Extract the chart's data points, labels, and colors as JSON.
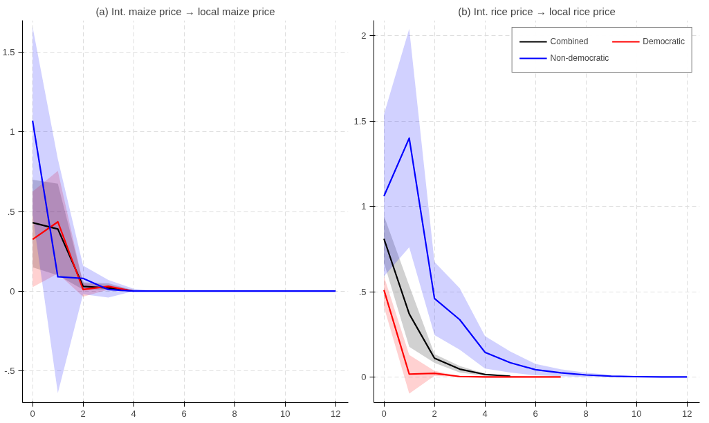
{
  "chart_data": [
    {
      "type": "line",
      "title": "(a) Int. maize price → local maize price",
      "x": [
        0,
        1,
        2,
        3,
        4,
        5,
        6,
        7,
        8,
        9,
        10,
        11,
        12
      ],
      "xlim": [
        -0.4,
        12.5
      ],
      "xticks": [
        0,
        2,
        4,
        6,
        8,
        10,
        12
      ],
      "ylim": [
        -0.7,
        1.7
      ],
      "yticks": [
        {
          "value": -0.5,
          "label": "-.5"
        },
        0,
        {
          "value": 0.5,
          "label": ".5"
        },
        1,
        {
          "value": 1.5,
          "label": "1.5"
        }
      ],
      "grid": true,
      "legend": false,
      "series": [
        {
          "color": "#000000",
          "values": [
            0.43,
            0.39,
            0.03,
            0.02,
            0,
            null,
            null,
            null,
            null,
            null,
            null,
            null,
            null
          ],
          "upper": [
            0.7,
            0.675,
            0.055,
            0.05,
            0.005,
            0,
            0,
            0,
            0,
            0,
            0,
            0,
            0
          ],
          "lower": [
            0.15,
            0.1,
            0.01,
            0.01,
            0,
            0,
            0,
            0,
            0,
            0,
            0,
            0,
            0
          ]
        },
        {
          "color": "#ff0000",
          "values": [
            0.325,
            0.435,
            0.01,
            0.03,
            0,
            null,
            null,
            null,
            null,
            null,
            null,
            null,
            null
          ],
          "upper": [
            0.625,
            0.755,
            0.05,
            0.04,
            0.005,
            0,
            0,
            0,
            0,
            0,
            0,
            0,
            0
          ],
          "lower": [
            0.025,
            0.11,
            -0.035,
            0.01,
            0,
            0,
            0,
            0,
            0,
            0,
            0,
            0,
            0
          ]
        },
        {
          "color": "#0000ff",
          "values": [
            1.07,
            0.09,
            0.08,
            0.01,
            0,
            0,
            0,
            0,
            0,
            0,
            0,
            0,
            0
          ],
          "upper": [
            1.66,
            0.83,
            0.16,
            0.07,
            0.015,
            0,
            0,
            0,
            0,
            0,
            0,
            0,
            0
          ],
          "lower": [
            0.48,
            -0.64,
            -0.02,
            -0.04,
            0,
            0,
            0,
            0,
            0,
            0,
            0,
            0,
            0
          ]
        }
      ]
    },
    {
      "type": "line",
      "title": "(b) Int. rice price → local rice price",
      "x": [
        0,
        1,
        2,
        3,
        4,
        5,
        6,
        7,
        8,
        9,
        10,
        11,
        12
      ],
      "xlim": [
        -0.4,
        12.5
      ],
      "xticks": [
        0,
        2,
        4,
        6,
        8,
        10,
        12
      ],
      "ylim": [
        -0.15,
        2.09
      ],
      "yticks": [
        0,
        {
          "value": 0.5,
          "label": ".5"
        },
        1,
        {
          "value": 1.5,
          "label": "1.5"
        },
        2
      ],
      "grid": true,
      "legend": "top right",
      "series": [
        {
          "name": "Combined",
          "color": "#000000",
          "values": [
            0.81,
            0.37,
            0.11,
            0.046,
            0.015,
            0.005,
            null,
            null,
            null,
            null,
            null,
            null,
            null
          ],
          "upper": [
            0.945,
            0.536,
            0.135,
            0.065,
            0.02,
            0.007,
            0,
            0,
            0,
            0,
            0,
            0,
            0
          ],
          "lower": [
            0.67,
            0.177,
            0.083,
            0.026,
            0.007,
            0,
            0,
            0,
            0,
            0,
            0,
            0,
            0
          ]
        },
        {
          "name": "Democratic",
          "color": "#ff0000",
          "values": [
            0.51,
            0.017,
            0.022,
            0.003,
            0,
            0,
            0,
            0,
            null,
            null,
            null,
            null,
            null
          ],
          "upper": [
            0.59,
            0.13,
            0.036,
            0.005,
            0,
            0,
            0,
            0,
            0,
            0,
            0,
            0,
            0
          ],
          "lower": [
            0.41,
            -0.097,
            0.007,
            0,
            0,
            0,
            0,
            0,
            0,
            0,
            0,
            0,
            0
          ]
        },
        {
          "name": "Non-democratic",
          "color": "#0000ff",
          "values": [
            1.06,
            1.4,
            0.46,
            0.336,
            0.145,
            0.084,
            0.043,
            0.025,
            0.012,
            0.005,
            0.002,
            0,
            0
          ],
          "upper": [
            1.54,
            2.04,
            0.674,
            0.52,
            0.24,
            0.15,
            0.077,
            0.045,
            0.025,
            0.012,
            0.005,
            0,
            0
          ],
          "lower": [
            0.59,
            0.76,
            0.246,
            0.16,
            0.05,
            0.026,
            0.01,
            0.005,
            0,
            0,
            0,
            0,
            0
          ]
        }
      ]
    }
  ]
}
